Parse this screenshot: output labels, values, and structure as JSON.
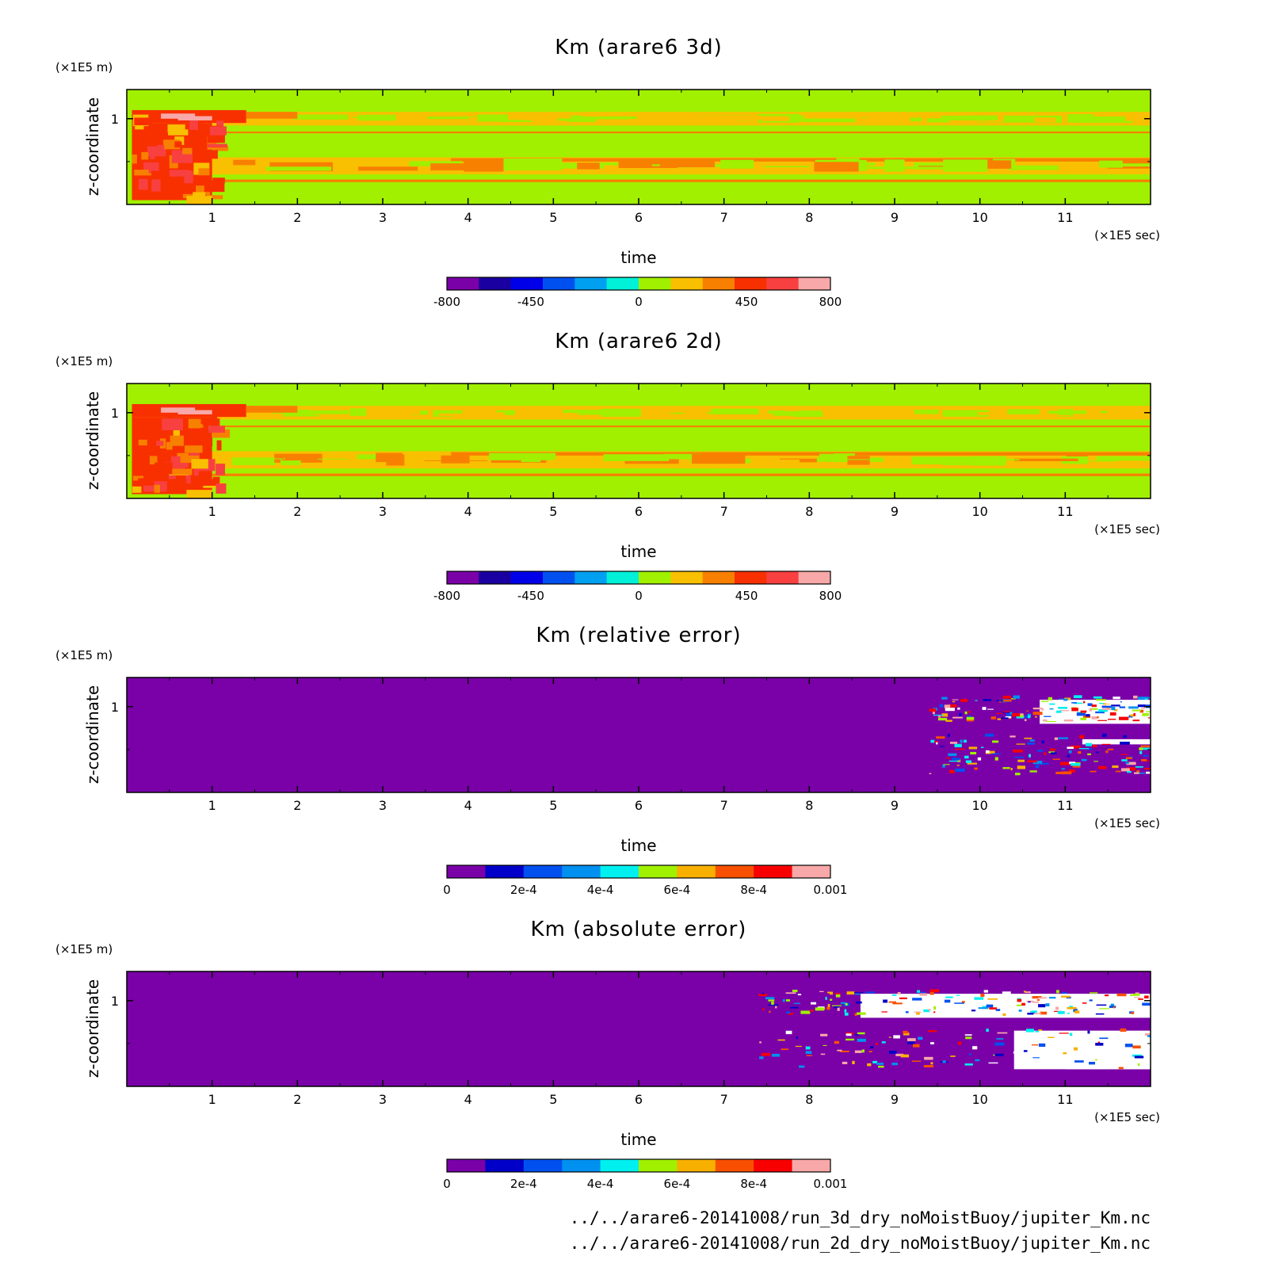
{
  "chart_data": [
    {
      "type": "heatmap",
      "title": "Km (arare6 3d)",
      "xlabel": "time",
      "ylabel": "z-coordinate",
      "x_unit": "(×1E5 sec)",
      "y_unit": "(×1E5 m)",
      "xlim": [
        0,
        12
      ],
      "ylim": [
        0,
        1.34
      ],
      "x_ticks": [
        "1",
        "2",
        "3",
        "4",
        "5",
        "6",
        "7",
        "8",
        "9",
        "10",
        "11"
      ],
      "y_ticks": [
        "1"
      ],
      "pattern": "field",
      "colorbar": {
        "range": [
          -800,
          800
        ],
        "labels": [
          "-800",
          "-450",
          "0",
          "450",
          "800"
        ],
        "colors": [
          "#7a00a8",
          "#1a00a0",
          "#0000e8",
          "#0050f0",
          "#00a0f0",
          "#00f0d8",
          "#a0f000",
          "#f8c000",
          "#f88000",
          "#f83000",
          "#f84040",
          "#f8a8a8"
        ]
      }
    },
    {
      "type": "heatmap",
      "title": "Km (arare6 2d)",
      "xlabel": "time",
      "ylabel": "z-coordinate",
      "x_unit": "(×1E5 sec)",
      "y_unit": "(×1E5 m)",
      "xlim": [
        0,
        12
      ],
      "ylim": [
        0,
        1.34
      ],
      "x_ticks": [
        "1",
        "2",
        "3",
        "4",
        "5",
        "6",
        "7",
        "8",
        "9",
        "10",
        "11"
      ],
      "y_ticks": [
        "1"
      ],
      "pattern": "field",
      "colorbar": {
        "range": [
          -800,
          800
        ],
        "labels": [
          "-800",
          "-450",
          "0",
          "450",
          "800"
        ],
        "colors": [
          "#7a00a8",
          "#1a00a0",
          "#0000e8",
          "#0050f0",
          "#00a0f0",
          "#00f0d8",
          "#a0f000",
          "#f8c000",
          "#f88000",
          "#f83000",
          "#f84040",
          "#f8a8a8"
        ]
      }
    },
    {
      "type": "heatmap",
      "title": "Km (relative error)",
      "xlabel": "time",
      "ylabel": "z-coordinate",
      "x_unit": "(×1E5 sec)",
      "y_unit": "(×1E5 m)",
      "xlim": [
        0,
        12
      ],
      "ylim": [
        0,
        1.34
      ],
      "x_ticks": [
        "1",
        "2",
        "3",
        "4",
        "5",
        "6",
        "7",
        "8",
        "9",
        "10",
        "11"
      ],
      "y_ticks": [
        "1"
      ],
      "pattern": "relerr",
      "colorbar": {
        "range": [
          0,
          0.001
        ],
        "labels": [
          "0",
          "2e-4",
          "4e-4",
          "6e-4",
          "8e-4",
          "0.001"
        ],
        "colors": [
          "#7a00a8",
          "#0000c8",
          "#0050f0",
          "#0090f0",
          "#00f0f0",
          "#a0f000",
          "#f8b000",
          "#f85000",
          "#f80000",
          "#f8a8a8"
        ]
      }
    },
    {
      "type": "heatmap",
      "title": "Km (absolute error)",
      "xlabel": "time",
      "ylabel": "z-coordinate",
      "x_unit": "(×1E5 sec)",
      "y_unit": "(×1E5 m)",
      "xlim": [
        0,
        12
      ],
      "ylim": [
        0,
        1.34
      ],
      "x_ticks": [
        "1",
        "2",
        "3",
        "4",
        "5",
        "6",
        "7",
        "8",
        "9",
        "10",
        "11"
      ],
      "y_ticks": [
        "1"
      ],
      "pattern": "abserr",
      "colorbar": {
        "range": [
          0,
          0.001
        ],
        "labels": [
          "0",
          "2e-4",
          "4e-4",
          "6e-4",
          "8e-4",
          "0.001"
        ],
        "colors": [
          "#7a00a8",
          "#0000c8",
          "#0050f0",
          "#0090f0",
          "#00f0f0",
          "#a0f000",
          "#f8b000",
          "#f85000",
          "#f80000",
          "#f8a8a8"
        ]
      }
    }
  ],
  "footer": {
    "line1": "../../arare6-20141008/run_3d_dry_noMoistBuoy/jupiter_Km.nc",
    "line2": "../../arare6-20141008/run_2d_dry_noMoistBuoy/jupiter_Km.nc"
  }
}
